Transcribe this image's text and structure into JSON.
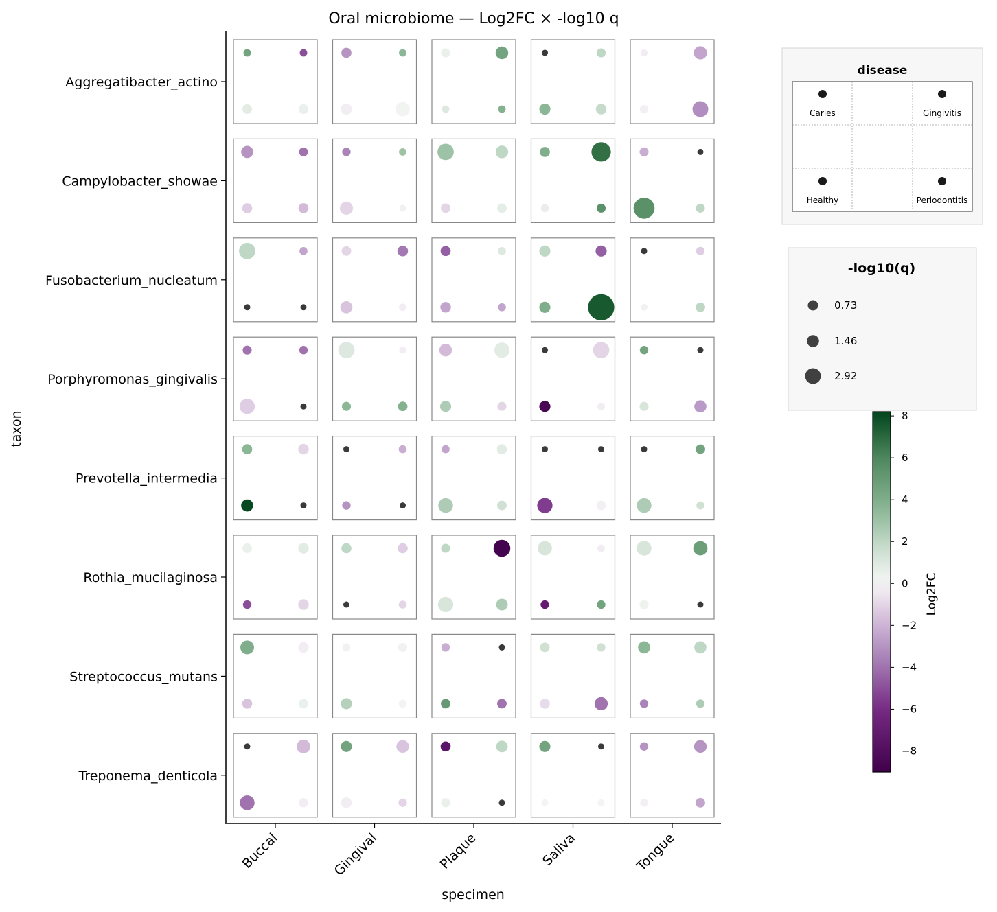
{
  "chart_data": {
    "type": "scatter",
    "title": "Oral microbiome — Log2FC × -log10 q",
    "xlabel": "specimen",
    "ylabel": "taxon",
    "specimens": [
      "Buccal",
      "Gingival",
      "Plaque",
      "Saliva",
      "Tongue"
    ],
    "taxa": [
      "Aggregatibacter_actino",
      "Campylobacter_showae",
      "Fusobacterium_nucleatum",
      "Porphyromonas_gingivalis",
      "Prevotella_intermedia",
      "Rothia_mucilaginosa",
      "Streptococcus_mutans",
      "Treponema_denticola"
    ],
    "disease_legend": {
      "title": "disease",
      "labels": [
        "Caries",
        "Gingivitis",
        "Healthy",
        "Periodontitis"
      ]
    },
    "size_legend": {
      "title": "-log10(q)",
      "values": [
        0.73,
        1.46,
        2.92
      ],
      "labels": [
        "0.73",
        "1.46",
        "2.92"
      ]
    },
    "colorbar": {
      "label": "Log2FC",
      "range": [
        -9,
        8.2
      ],
      "ticks": [
        8,
        6,
        4,
        2,
        0,
        -2,
        -4,
        -6,
        -8
      ],
      "tick_labels": [
        "8",
        "6",
        "4",
        "2",
        "0",
        "−2",
        "−4",
        "−6",
        "−8"
      ],
      "colormap": "PRGn"
    },
    "cell_order": [
      "Caries",
      "Gingivitis",
      "Healthy",
      "Periodontitis"
    ],
    "points": [
      [
        [
          [
            4.5,
            0.9
          ],
          [
            -5,
            0.9
          ],
          [
            0.8,
            1.3
          ],
          [
            0.5,
            1.3
          ]
        ],
        [
          [
            -3,
            1.4
          ],
          [
            3.5,
            0.9
          ],
          [
            -0.3,
            1.6
          ],
          [
            0.2,
            2.2
          ]
        ],
        [
          [
            0.5,
            1.2
          ],
          [
            4.5,
            1.9
          ],
          [
            1,
            0.9
          ],
          [
            3.8,
            0.9
          ]
        ],
        [
          [
            -0.1,
            0.6
          ],
          [
            2,
            1.2
          ],
          [
            3.5,
            1.6
          ],
          [
            1.8,
            1.5
          ]
        ],
        [
          [
            -0.3,
            0.8
          ],
          [
            -2.5,
            2
          ],
          [
            -0.2,
            1.1
          ],
          [
            -3.2,
            2.5
          ]
        ]
      ],
      [
        [
          [
            -3,
            1.8
          ],
          [
            -4,
            1.2
          ],
          [
            -1.2,
            1.4
          ],
          [
            -1.8,
            1.4
          ]
        ],
        [
          [
            -3.5,
            1.1
          ],
          [
            3,
            0.9
          ],
          [
            -1,
            2
          ],
          [
            0.3,
            0.7
          ]
        ],
        [
          [
            3,
            2.6
          ],
          [
            2,
            1.9
          ],
          [
            -1,
            1.3
          ],
          [
            0.7,
            1.3
          ]
        ],
        [
          [
            4,
            1.4
          ],
          [
            6.8,
            3.2
          ],
          [
            -0.4,
            1
          ],
          [
            5.5,
            1.2
          ]
        ],
        [
          [
            -2.2,
            1.2
          ],
          [
            0.3,
            0.6
          ],
          [
            5.5,
            3.5
          ],
          [
            2,
            1.2
          ]
        ]
      ],
      [
        [
          [
            2,
            2.6
          ],
          [
            -2.5,
            1
          ],
          [
            0.3,
            0.6
          ],
          [
            0.3,
            0.6
          ]
        ],
        [
          [
            -1,
            1.3
          ],
          [
            -3.8,
            1.5
          ],
          [
            -1.5,
            1.8
          ],
          [
            -0.3,
            0.9
          ]
        ],
        [
          [
            -4.5,
            1.4
          ],
          [
            1,
            1
          ],
          [
            -2.5,
            1.5
          ],
          [
            -2.5,
            1
          ]
        ],
        [
          [
            2,
            1.6
          ],
          [
            -4.5,
            1.6
          ],
          [
            4,
            1.6
          ],
          [
            7.5,
            4.5
          ]
        ],
        [
          [
            0.3,
            0.6
          ],
          [
            -1.2,
            1.1
          ],
          [
            -0.2,
            0.7
          ],
          [
            2,
            1.3
          ]
        ]
      ],
      [
        [
          [
            -4,
            1.2
          ],
          [
            -4,
            1.1
          ],
          [
            -1.2,
            2.4
          ],
          [
            0.3,
            0.6
          ]
        ],
        [
          [
            1,
            2.6
          ],
          [
            -0.3,
            0.8
          ],
          [
            3.5,
            1.2
          ],
          [
            3.8,
            1.3
          ]
        ],
        [
          [
            -1.8,
            1.9
          ],
          [
            0.8,
            2.4
          ],
          [
            2.5,
            1.6
          ],
          [
            -1,
            1.2
          ]
        ],
        [
          [
            0.3,
            0.6
          ],
          [
            -1,
            2.6
          ],
          [
            -8.5,
            1.6
          ],
          [
            -0.3,
            0.9
          ]
        ],
        [
          [
            4.5,
            1.1
          ],
          [
            0.3,
            0.6
          ],
          [
            1.2,
            1.2
          ],
          [
            -2.8,
            1.8
          ]
        ]
      ],
      [
        [
          [
            3.5,
            1.4
          ],
          [
            -1,
            1.5
          ],
          [
            8,
            1.8
          ],
          [
            0.3,
            0.6
          ]
        ],
        [
          [
            0.3,
            0.6
          ],
          [
            -2.2,
            1
          ],
          [
            -3,
            1.1
          ],
          [
            0.3,
            0.6
          ]
        ],
        [
          [
            -2.5,
            1
          ],
          [
            0.8,
            1.4
          ],
          [
            2.5,
            2.3
          ],
          [
            1.5,
            1.3
          ]
        ],
        [
          [
            -0.2,
            0.6
          ],
          [
            0.3,
            0.6
          ],
          [
            -5.5,
            2.4
          ],
          [
            -0.2,
            1.3
          ]
        ],
        [
          [
            0.3,
            0.6
          ],
          [
            4.5,
            1.3
          ],
          [
            2.5,
            2.3
          ],
          [
            1.5,
            1
          ]
        ]
      ],
      [
        [
          [
            0.5,
            1.3
          ],
          [
            0.8,
            1.5
          ],
          [
            -5,
            1.1
          ],
          [
            -1,
            1.5
          ]
        ],
        [
          [
            2,
            1.4
          ],
          [
            -1.2,
            1.4
          ],
          [
            0.3,
            0.6
          ],
          [
            -1,
            1
          ]
        ],
        [
          [
            2,
            1.2
          ],
          [
            -8.8,
            2.7
          ],
          [
            1.2,
            2.4
          ],
          [
            2.5,
            1.7
          ]
        ],
        [
          [
            1.2,
            2.2
          ],
          [
            -0.3,
            0.9
          ],
          [
            -7,
            1.1
          ],
          [
            4.5,
            1.1
          ]
        ],
        [
          [
            1.2,
            2.3
          ],
          [
            4.8,
            2.2
          ],
          [
            0.3,
            1.2
          ],
          [
            0.3,
            0.6
          ]
        ]
      ],
      [
        [
          [
            4,
            2.1
          ],
          [
            -0.3,
            1.5
          ],
          [
            -1.5,
            1.4
          ],
          [
            0.5,
            1.3
          ]
        ],
        [
          [
            -0.2,
            1
          ],
          [
            -0.2,
            1.2
          ],
          [
            2.3,
            1.6
          ],
          [
            0.2,
            1
          ]
        ],
        [
          [
            -2.2,
            1.1
          ],
          [
            0.3,
            0.6
          ],
          [
            5,
            1.3
          ],
          [
            -4,
            1.3
          ]
        ],
        [
          [
            1.5,
            1.3
          ],
          [
            1.5,
            1.1
          ],
          [
            -0.8,
            1.4
          ],
          [
            -4,
            2
          ]
        ],
        [
          [
            3.5,
            1.8
          ],
          [
            2,
            1.8
          ],
          [
            -3.5,
            1.1
          ],
          [
            2.5,
            1.1
          ]
        ]
      ],
      [
        [
          [
            0.3,
            0.6
          ],
          [
            -1.8,
            2.1
          ],
          [
            -4,
            2.3
          ],
          [
            -0.3,
            1.2
          ]
        ],
        [
          [
            4.5,
            1.6
          ],
          [
            -1.5,
            1.9
          ],
          [
            -0.3,
            1.5
          ],
          [
            -1,
            1.1
          ]
        ],
        [
          [
            -7.5,
            1.4
          ],
          [
            2,
            1.7
          ],
          [
            0.5,
            1.2
          ],
          [
            0.3,
            0.6
          ]
        ],
        [
          [
            4.5,
            1.6
          ],
          [
            0.3,
            0.6
          ],
          [
            -0.1,
            0.8
          ],
          [
            -0.1,
            0.8
          ]
        ],
        [
          [
            -3,
            1.1
          ],
          [
            -3,
            1.9
          ],
          [
            -0.2,
            1
          ],
          [
            -2.5,
            1.3
          ]
        ]
      ]
    ]
  }
}
